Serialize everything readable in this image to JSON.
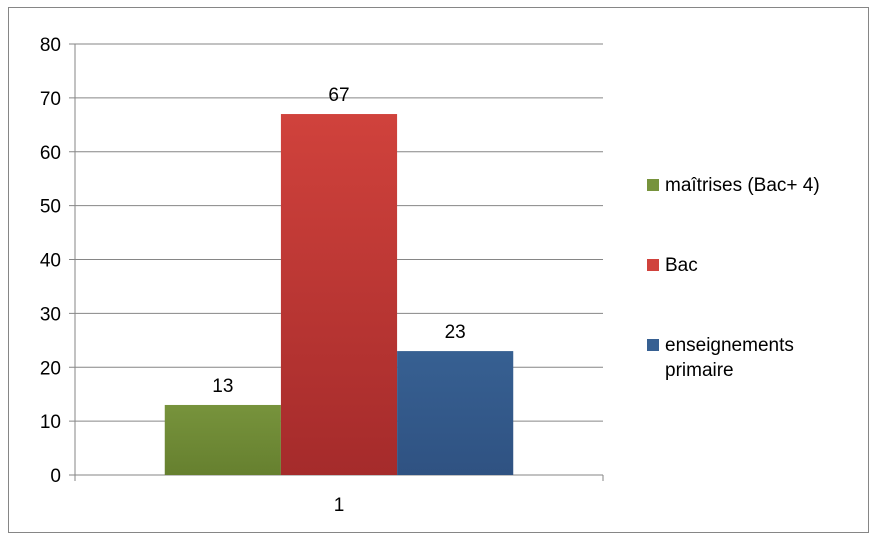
{
  "chart_data": {
    "type": "bar",
    "categories": [
      "1"
    ],
    "series": [
      {
        "name": "maîtrises (Bac+ 4)",
        "values": [
          13
        ],
        "color": "#77933C",
        "color_dark": "#66802F"
      },
      {
        "name": "Bac",
        "values": [
          67
        ],
        "color": "#D0423C",
        "color_dark": "#A52B2B"
      },
      {
        "name": "enseignements primaire",
        "legend_lines": [
          "enseignements",
          "primaire"
        ],
        "values": [
          23
        ],
        "color": "#376092",
        "color_dark": "#2F5282"
      }
    ],
    "ylim": [
      0,
      80
    ],
    "yticks": [
      "0",
      "10",
      "20",
      "30",
      "40",
      "50",
      "60",
      "70",
      "80"
    ],
    "grid": true,
    "data_labels": true,
    "legend_position": "right"
  }
}
